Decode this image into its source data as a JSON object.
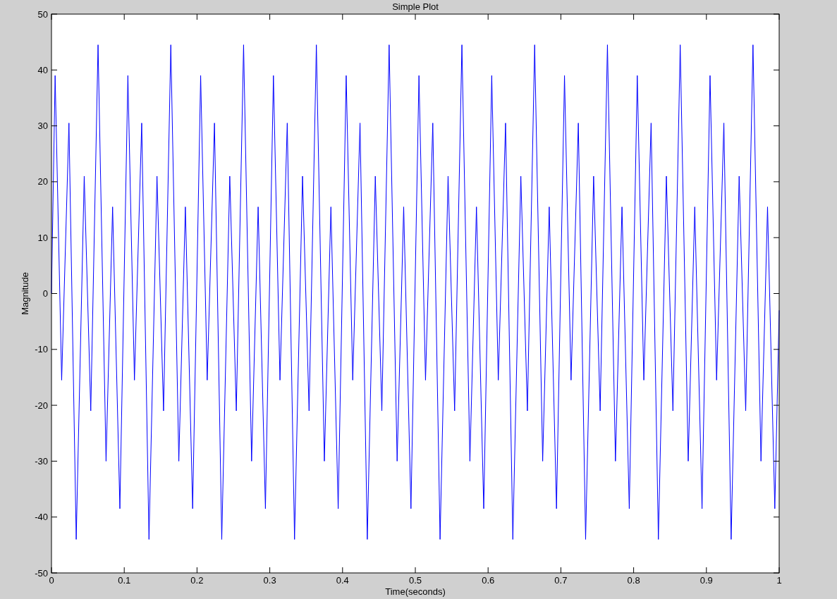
{
  "chart_data": {
    "type": "line",
    "title": "Simple Plot",
    "xlabel": "Time(seconds)",
    "ylabel": "Magnitude",
    "xlim": [
      0,
      1
    ],
    "xticks": [
      0,
      0.1,
      0.2,
      0.3,
      0.4,
      0.5,
      0.6,
      0.7,
      0.8,
      0.9,
      1
    ],
    "ylim": [
      -50,
      50
    ],
    "yticks": [
      -50,
      -40,
      -30,
      -20,
      -10,
      0,
      10,
      20,
      30,
      40,
      50
    ],
    "grid": false,
    "marker": "none",
    "line_style": "solid",
    "series": [
      {
        "color": "#0000ff",
        "x": [
          0,
          0.005,
          0.014,
          0.024,
          0.034,
          0.045,
          0.054,
          0.064,
          0.075,
          0.084,
          0.094,
          0.105,
          0.114,
          0.124,
          0.134,
          0.145,
          0.154,
          0.164,
          0.175,
          0.184,
          0.194,
          0.205,
          0.214,
          0.224,
          0.234,
          0.245,
          0.254,
          0.264,
          0.275,
          0.284,
          0.294,
          0.305,
          0.314,
          0.324,
          0.334,
          0.345,
          0.354,
          0.364,
          0.375,
          0.384,
          0.394,
          0.405,
          0.414,
          0.424,
          0.434,
          0.445,
          0.454,
          0.464,
          0.475,
          0.484,
          0.494,
          0.505,
          0.514,
          0.524,
          0.534,
          0.545,
          0.554,
          0.564,
          0.575,
          0.584,
          0.594,
          0.605,
          0.614,
          0.624,
          0.634,
          0.645,
          0.654,
          0.664,
          0.675,
          0.684,
          0.694,
          0.705,
          0.714,
          0.724,
          0.734,
          0.745,
          0.754,
          0.764,
          0.775,
          0.784,
          0.794,
          0.805,
          0.814,
          0.824,
          0.834,
          0.845,
          0.854,
          0.864,
          0.875,
          0.884,
          0.894,
          0.905,
          0.914,
          0.924,
          0.934,
          0.945,
          0.954,
          0.964,
          0.975,
          0.984,
          0.994,
          1
        ],
        "values": [
          0,
          39,
          -15.5,
          30.5,
          -44,
          21,
          -21,
          44.5,
          -30,
          15.5,
          -38.5,
          39,
          -15.5,
          30.5,
          -44,
          21,
          -21,
          44.5,
          -30,
          15.5,
          -38.5,
          39,
          -15.5,
          30.5,
          -44,
          21,
          -21,
          44.5,
          -30,
          15.5,
          -38.5,
          39,
          -15.5,
          30.5,
          -44,
          21,
          -21,
          44.5,
          -30,
          15.5,
          -38.5,
          39,
          -15.5,
          30.5,
          -44,
          21,
          -21,
          44.5,
          -30,
          15.5,
          -38.5,
          39,
          -15.5,
          30.5,
          -44,
          21,
          -21,
          44.5,
          -30,
          15.5,
          -38.5,
          39,
          -15.5,
          30.5,
          -44,
          21,
          -21,
          44.5,
          -30,
          15.5,
          -38.5,
          39,
          -15.5,
          30.5,
          -44,
          21,
          -21,
          44.5,
          -30,
          15.5,
          -38.5,
          39,
          -15.5,
          30.5,
          -44,
          21,
          -21,
          44.5,
          -30,
          15.5,
          -38.5,
          39,
          -15.5,
          30.5,
          -44,
          21,
          -21,
          44.5,
          -30,
          15.5,
          -38.5,
          -3
        ]
      }
    ]
  }
}
